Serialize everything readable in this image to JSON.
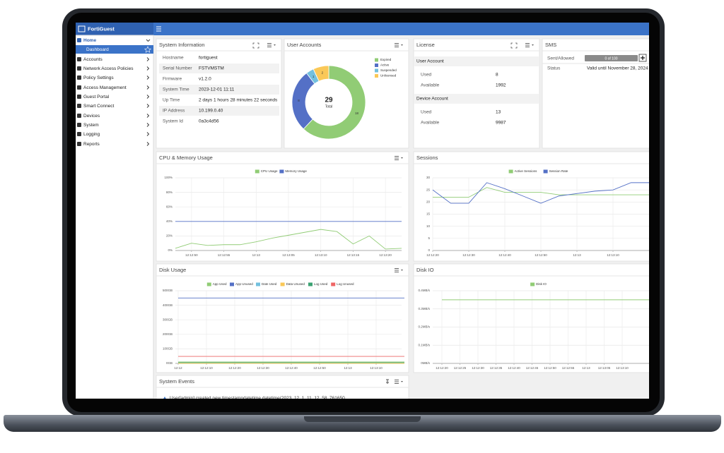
{
  "app": {
    "brand": "FortiGuest"
  },
  "sidebar": {
    "items": [
      "Home",
      "Dashboard",
      "Accounts",
      "Network Access Policies",
      "Policy Settings",
      "Access Management",
      "Guest Portal",
      "Smart Connect",
      "Devices",
      "System",
      "Logging",
      "Reports"
    ]
  },
  "system_information": {
    "title": "System Information",
    "rows": [
      [
        "Hostname",
        "fortiguest"
      ],
      [
        "Serial Number",
        "FSTVMSTM"
      ],
      [
        "Firmware",
        "v1.2.0"
      ],
      [
        "System Time",
        "2023-12-01 11:11"
      ],
      [
        "Up Time",
        "2 days 1 hours 28 minutes 22 seconds"
      ],
      [
        "IP Address",
        "10.199.0.40"
      ],
      [
        "System Id",
        "0a3c4d56"
      ]
    ]
  },
  "license": {
    "title": "License",
    "sections": [
      {
        "heading": "User Account",
        "rows": [
          [
            "Used",
            "8"
          ],
          [
            "Available",
            "1992"
          ]
        ]
      },
      {
        "heading": "Device Account",
        "rows": [
          [
            "Used",
            "13"
          ],
          [
            "Available",
            "9987"
          ]
        ]
      }
    ]
  },
  "sms": {
    "title": "SMS",
    "rows": [
      [
        "Sent/Allowed",
        "0 of 100"
      ],
      [
        "Status",
        "Valid until November 28, 2024"
      ]
    ]
  },
  "system_events": {
    "title": "System Events",
    "items": [
      "User[admin] created new timestampdatetime.datetime(2023, 12, 1, 11, 12, 58, 761650"
    ]
  },
  "chart_data": [
    {
      "type": "pie",
      "title": "User Accounts",
      "categories": [
        "Expired",
        "Active",
        "Suspended",
        "Unlicensed"
      ],
      "values": [
        18,
        8,
        1,
        2
      ],
      "colors": [
        "#91cc75",
        "#5470c6",
        "#73c0de",
        "#fac858"
      ],
      "total": 29,
      "total_label": "Total",
      "legend": "top-right"
    },
    {
      "type": "line",
      "title": "CPU & Memory Usage",
      "categories": [
        null,
        "12:12:50",
        null,
        "12:12:55",
        null,
        "12:13",
        null,
        "12:13:05",
        null,
        "12:13:10",
        null,
        "12:13:15",
        null,
        "12:13:20",
        null
      ],
      "series": [
        {
          "name": "CPU Usage",
          "color": "#91cc75",
          "values": [
            3,
            10,
            7,
            8,
            8,
            12,
            17,
            21,
            25,
            29,
            26,
            9,
            20,
            2,
            3
          ]
        },
        {
          "name": "Memory Usage",
          "color": "#5470c6",
          "values": [
            40,
            40,
            40,
            40,
            40,
            40,
            40,
            40,
            40,
            40,
            40,
            40,
            40,
            40,
            40
          ]
        }
      ],
      "ylim": [
        0,
        100
      ],
      "yticks": [
        {
          "value": 0,
          "label": "0%"
        },
        {
          "value": 20,
          "label": "20%"
        },
        {
          "value": 40,
          "label": "40%"
        },
        {
          "value": 60,
          "label": "60%"
        },
        {
          "value": 80,
          "label": "80%"
        },
        {
          "value": 100,
          "label": "100%"
        }
      ],
      "grid": true,
      "legend": "top"
    },
    {
      "type": "line",
      "title": "Sessions",
      "categories": [
        "12:12:20",
        null,
        "12:12:30",
        null,
        "12:12:40",
        null,
        "12:12:50",
        null,
        "12:13",
        null,
        "12:13:10",
        null,
        null
      ],
      "series": [
        {
          "name": "Active Sessions",
          "color": "#91cc75",
          "values": [
            22,
            22,
            22,
            26,
            24,
            24,
            24,
            23,
            23,
            23,
            23,
            23,
            23
          ]
        },
        {
          "name": "Session Rate",
          "color": "#5470c6",
          "values": [
            25,
            19.5,
            19.5,
            28,
            25.5,
            22.5,
            19.5,
            22.5,
            23.5,
            24.5,
            25,
            28,
            28
          ]
        }
      ],
      "ylim": [
        0,
        30
      ],
      "yticks": [
        0,
        5,
        10,
        15,
        20,
        25,
        30
      ],
      "grid": true,
      "legend": "top"
    },
    {
      "type": "line",
      "title": "Disk Usage",
      "categories": [
        "12:12",
        "12:12:10",
        "12:12:20",
        "12:12:30",
        "12:12:40",
        "12:12:50",
        "12:13",
        "12:13:10",
        null
      ],
      "series": [
        {
          "name": "App Used",
          "color": "#91cc75",
          "values": [
            10,
            10,
            10,
            10,
            10,
            10,
            10,
            10,
            10
          ]
        },
        {
          "name": "App Unused",
          "color": "#5470c6",
          "values": [
            450,
            450,
            450,
            450,
            450,
            450,
            450,
            450,
            450
          ]
        },
        {
          "name": "Date Used",
          "color": "#73c0de",
          "values": [
            0,
            0,
            0,
            0,
            0,
            0,
            0,
            0,
            0
          ]
        },
        {
          "name": "Data Unused",
          "color": "#fac858",
          "values": [
            0,
            0,
            0,
            0,
            0,
            0,
            0,
            0,
            0
          ]
        },
        {
          "name": "Log Used",
          "color": "#3ba272",
          "values": [
            5,
            5,
            5,
            5,
            5,
            5,
            5,
            5,
            5
          ]
        },
        {
          "name": "Log Unused",
          "color": "#ee6666",
          "values": [
            48,
            48,
            48,
            48,
            48,
            48,
            48,
            48,
            48
          ]
        }
      ],
      "ylim": [
        0,
        500
      ],
      "yticks": [
        {
          "value": 0,
          "label": "0GB"
        },
        {
          "value": 100,
          "label": "100GB"
        },
        {
          "value": 200,
          "label": "200GB"
        },
        {
          "value": 300,
          "label": "300GB"
        },
        {
          "value": 400,
          "label": "400GB"
        },
        {
          "value": 500,
          "label": "500GB"
        }
      ],
      "grid": true,
      "legend": "top"
    },
    {
      "type": "line",
      "title": "Disk IO",
      "categories": [
        "12:12:20",
        "12:12:25",
        "12:12:30",
        "12:12:35",
        "12:12:40",
        "12:12:45",
        "12:12:50",
        "12:12:55",
        "12:13",
        "12:13:05",
        "12:13:10",
        null,
        null
      ],
      "series": [
        {
          "name": "Disk IO",
          "color": "#91cc75",
          "values": [
            0.35,
            0.35,
            0.35,
            0.35,
            0.35,
            0.35,
            0.35,
            0.35,
            0.35,
            0.35,
            0.35,
            0.35,
            0.35
          ]
        }
      ],
      "ylim": [
        0,
        0.4
      ],
      "yticks": [
        {
          "value": 0,
          "label": "0MB/s"
        },
        {
          "value": 0.1,
          "label": "0.1MB/s"
        },
        {
          "value": 0.2,
          "label": "0.2MB/s"
        },
        {
          "value": 0.3,
          "label": "0.3MB/s"
        },
        {
          "value": 0.4,
          "label": "0.4MB/s"
        }
      ],
      "grid": true,
      "legend": "top"
    }
  ]
}
